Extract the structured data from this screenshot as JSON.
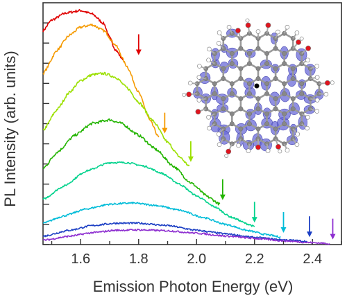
{
  "chart_data": {
    "type": "line",
    "xlabel": "Emission Photon Energy (eV)",
    "ylabel": "PL Intensity (arb. units)",
    "xlim": [
      1.47,
      2.5
    ],
    "ylim": [
      0,
      1.0
    ],
    "x_ticks": [
      "1.6",
      "1.8",
      "2.0",
      "2.2",
      "2.4"
    ],
    "y_ticks": "unlabeled",
    "grid": false,
    "legend": "none",
    "series": [
      {
        "color": "#e00000",
        "excitation_arrow_eV": 1.8,
        "points": [
          [
            1.47,
            0.9
          ],
          [
            1.5,
            0.945
          ],
          [
            1.55,
            0.975
          ],
          [
            1.6,
            0.985
          ],
          [
            1.64,
            0.97
          ],
          [
            1.68,
            0.93
          ],
          [
            1.7,
            0.87
          ],
          [
            1.72,
            0.82
          ],
          [
            1.745,
            0.78
          ]
        ]
      },
      {
        "color": "#f59a00",
        "excitation_arrow_eV": 1.89,
        "points": [
          [
            1.47,
            0.72
          ],
          [
            1.52,
            0.82
          ],
          [
            1.56,
            0.88
          ],
          [
            1.6,
            0.915
          ],
          [
            1.64,
            0.925
          ],
          [
            1.68,
            0.9
          ],
          [
            1.72,
            0.84
          ],
          [
            1.76,
            0.75
          ],
          [
            1.8,
            0.64
          ],
          [
            1.84,
            0.52
          ],
          [
            1.87,
            0.45
          ]
        ]
      },
      {
        "color": "#9be000",
        "excitation_arrow_eV": 1.98,
        "points": [
          [
            1.47,
            0.48
          ],
          [
            1.52,
            0.57
          ],
          [
            1.56,
            0.64
          ],
          [
            1.6,
            0.69
          ],
          [
            1.64,
            0.715
          ],
          [
            1.68,
            0.72
          ],
          [
            1.72,
            0.705
          ],
          [
            1.76,
            0.66
          ],
          [
            1.8,
            0.6
          ],
          [
            1.85,
            0.52
          ],
          [
            1.9,
            0.43
          ],
          [
            1.94,
            0.37
          ],
          [
            1.975,
            0.33
          ]
        ]
      },
      {
        "color": "#22b400",
        "excitation_arrow_eV": 2.09,
        "points": [
          [
            1.47,
            0.32
          ],
          [
            1.52,
            0.39
          ],
          [
            1.58,
            0.46
          ],
          [
            1.64,
            0.51
          ],
          [
            1.7,
            0.525
          ],
          [
            1.74,
            0.51
          ],
          [
            1.8,
            0.46
          ],
          [
            1.86,
            0.4
          ],
          [
            1.92,
            0.33
          ],
          [
            1.98,
            0.26
          ],
          [
            2.04,
            0.2
          ],
          [
            2.08,
            0.17
          ]
        ]
      },
      {
        "color": "#00d28c",
        "excitation_arrow_eV": 2.2,
        "points": [
          [
            1.47,
            0.19
          ],
          [
            1.54,
            0.245
          ],
          [
            1.62,
            0.31
          ],
          [
            1.7,
            0.345
          ],
          [
            1.76,
            0.345
          ],
          [
            1.82,
            0.33
          ],
          [
            1.88,
            0.3
          ],
          [
            1.94,
            0.255
          ],
          [
            2.0,
            0.205
          ],
          [
            2.06,
            0.16
          ],
          [
            2.12,
            0.115
          ],
          [
            2.18,
            0.085
          ],
          [
            2.2,
            0.075
          ]
        ]
      },
      {
        "color": "#00bcd8",
        "excitation_arrow_eV": 2.3,
        "points": [
          [
            1.47,
            0.09
          ],
          [
            1.54,
            0.12
          ],
          [
            1.62,
            0.15
          ],
          [
            1.7,
            0.17
          ],
          [
            1.78,
            0.175
          ],
          [
            1.86,
            0.165
          ],
          [
            1.94,
            0.145
          ],
          [
            2.02,
            0.115
          ],
          [
            2.1,
            0.085
          ],
          [
            2.18,
            0.058
          ],
          [
            2.24,
            0.042
          ],
          [
            2.29,
            0.032
          ]
        ]
      },
      {
        "color": "#1c3fc4",
        "excitation_arrow_eV": 2.39,
        "points": [
          [
            1.47,
            0.035
          ],
          [
            1.56,
            0.06
          ],
          [
            1.64,
            0.08
          ],
          [
            1.72,
            0.09
          ],
          [
            1.8,
            0.09
          ],
          [
            1.9,
            0.08
          ],
          [
            2.0,
            0.06
          ],
          [
            2.1,
            0.045
          ],
          [
            2.2,
            0.03
          ],
          [
            2.3,
            0.02
          ],
          [
            2.38,
            0.014
          ]
        ]
      },
      {
        "color": "#8e2fd0",
        "excitation_arrow_eV": 2.47,
        "points": [
          [
            1.47,
            0.018
          ],
          [
            1.56,
            0.035
          ],
          [
            1.64,
            0.05
          ],
          [
            1.72,
            0.06
          ],
          [
            1.8,
            0.062
          ],
          [
            1.9,
            0.058
          ],
          [
            2.0,
            0.048
          ],
          [
            2.1,
            0.036
          ],
          [
            2.2,
            0.026
          ],
          [
            2.3,
            0.016
          ],
          [
            2.4,
            0.008
          ],
          [
            2.46,
            0.004
          ]
        ]
      }
    ],
    "inset": {
      "description_icon": "graphene-quantum-dot-molecule-icon",
      "colors": {
        "carbon": "#888888",
        "oxygen": "#e0141e",
        "hydrogen": "#ffffff",
        "orbital": "#6a6ad8",
        "center": "#000000"
      }
    }
  }
}
